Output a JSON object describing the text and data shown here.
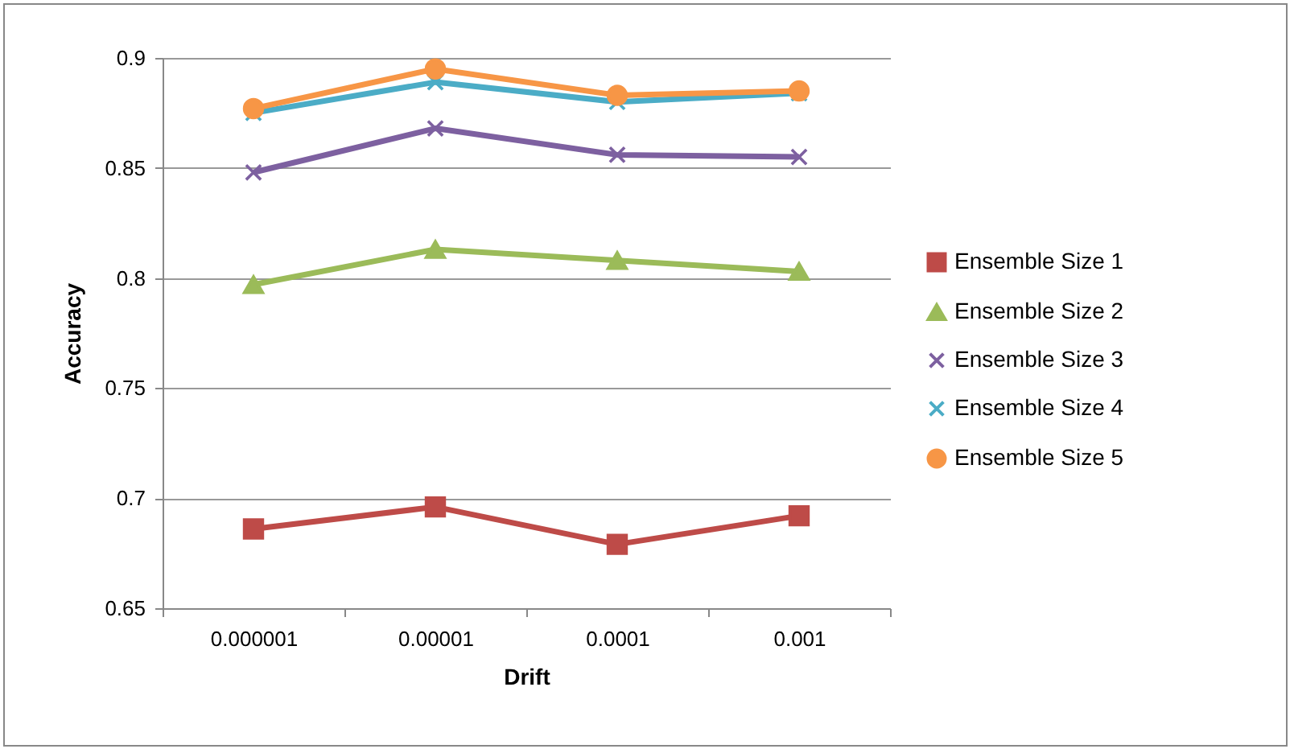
{
  "chart_data": {
    "type": "line",
    "xlabel": "Drift",
    "ylabel": "Accuracy",
    "categories": [
      "0.000001",
      "0.00001",
      "0.0001",
      "0.001"
    ],
    "series": [
      {
        "name": "Ensemble Size 1",
        "color": "#be4b48",
        "marker": "square",
        "values": [
          0.686,
          0.696,
          0.679,
          0.692
        ]
      },
      {
        "name": "Ensemble Size 2",
        "color": "#9bbb59",
        "marker": "triangle",
        "values": [
          0.797,
          0.813,
          0.808,
          0.803
        ]
      },
      {
        "name": "Ensemble Size 3",
        "color": "#7d60a0",
        "marker": "cross",
        "values": [
          0.848,
          0.868,
          0.856,
          0.855
        ]
      },
      {
        "name": "Ensemble Size 4",
        "color": "#4bacc6",
        "marker": "cross",
        "values": [
          0.875,
          0.889,
          0.88,
          0.884
        ]
      },
      {
        "name": "Ensemble Size 5",
        "color": "#f79646",
        "marker": "circle",
        "values": [
          0.877,
          0.895,
          0.883,
          0.885
        ]
      }
    ],
    "ylim": [
      0.65,
      0.9
    ],
    "yticks": [
      0.65,
      0.7,
      0.75,
      0.8,
      0.85,
      0.9
    ],
    "grid": "y",
    "legend": "right"
  }
}
